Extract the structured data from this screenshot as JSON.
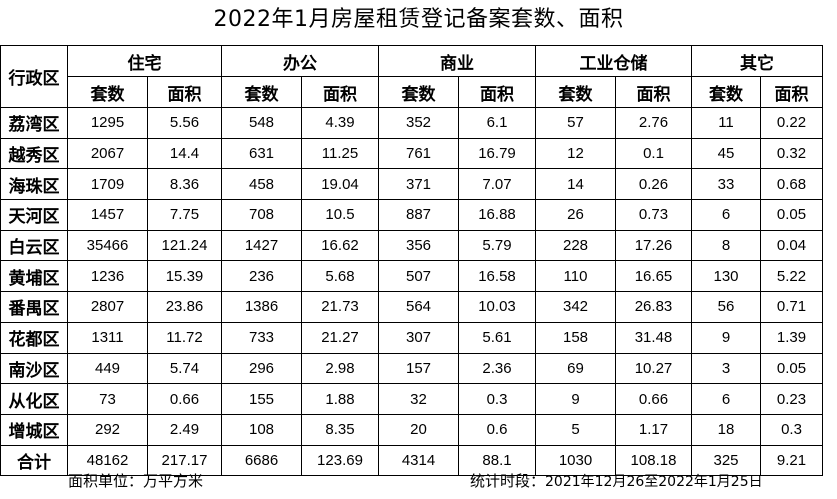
{
  "title": "2022年1月房屋租赁登记备案套数、面积",
  "corner_header": "行政区",
  "categories": [
    "住宅",
    "办公",
    "商业",
    "工业仓储",
    "其它"
  ],
  "sub_headers": {
    "count": "套数",
    "area": "面积"
  },
  "rows": [
    {
      "district": "荔湾区",
      "values": [
        "1295",
        "5.56",
        "548",
        "4.39",
        "352",
        "6.1",
        "57",
        "2.76",
        "11",
        "0.22"
      ]
    },
    {
      "district": "越秀区",
      "values": [
        "2067",
        "14.4",
        "631",
        "11.25",
        "761",
        "16.79",
        "12",
        "0.1",
        "45",
        "0.32"
      ]
    },
    {
      "district": "海珠区",
      "values": [
        "1709",
        "8.36",
        "458",
        "19.04",
        "371",
        "7.07",
        "14",
        "0.26",
        "33",
        "0.68"
      ]
    },
    {
      "district": "天河区",
      "values": [
        "1457",
        "7.75",
        "708",
        "10.5",
        "887",
        "16.88",
        "26",
        "0.73",
        "6",
        "0.05"
      ]
    },
    {
      "district": "白云区",
      "values": [
        "35466",
        "121.24",
        "1427",
        "16.62",
        "356",
        "5.79",
        "228",
        "17.26",
        "8",
        "0.04"
      ]
    },
    {
      "district": "黄埔区",
      "values": [
        "1236",
        "15.39",
        "236",
        "5.68",
        "507",
        "16.58",
        "110",
        "16.65",
        "130",
        "5.22"
      ]
    },
    {
      "district": "番禺区",
      "values": [
        "2807",
        "23.86",
        "1386",
        "21.73",
        "564",
        "10.03",
        "342",
        "26.83",
        "56",
        "0.71"
      ]
    },
    {
      "district": "花都区",
      "values": [
        "1311",
        "11.72",
        "733",
        "21.27",
        "307",
        "5.61",
        "158",
        "31.48",
        "9",
        "1.39"
      ]
    },
    {
      "district": "南沙区",
      "values": [
        "449",
        "5.74",
        "296",
        "2.98",
        "157",
        "2.36",
        "69",
        "10.27",
        "3",
        "0.05"
      ]
    },
    {
      "district": "从化区",
      "values": [
        "73",
        "0.66",
        "155",
        "1.88",
        "32",
        "0.3",
        "9",
        "0.66",
        "6",
        "0.23"
      ]
    },
    {
      "district": "增城区",
      "values": [
        "292",
        "2.49",
        "108",
        "8.35",
        "20",
        "0.6",
        "5",
        "1.17",
        "18",
        "0.3"
      ]
    }
  ],
  "total": {
    "label": "合计",
    "values": [
      "48162",
      "217.17",
      "6686",
      "123.69",
      "4314",
      "88.1",
      "1030",
      "108.18",
      "325",
      "9.21"
    ]
  },
  "footer": {
    "unit_note": "面积单位：万平方米",
    "period_label": "统计时段：",
    "period_dates": "2021年12月26至2022年1月25日"
  }
}
